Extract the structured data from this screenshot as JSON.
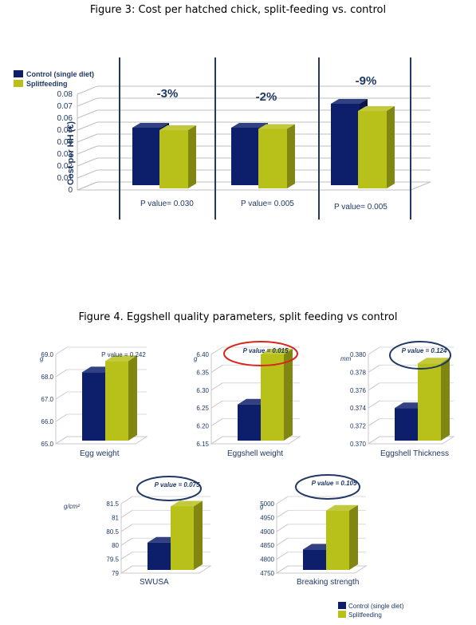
{
  "figure3": {
    "title": "Figure 3: Cost per hatched chick, split-feeding vs. control"
  },
  "figure4": {
    "title": "Figure 4. Eggshell quality parameters, split feeding vs control"
  },
  "colors": {
    "control": "#0d1f6b",
    "split": "#b8c01a",
    "accent": "#1f3864",
    "red_circle": "#d9261c"
  },
  "chart_data": [
    {
      "id": "cost",
      "type": "bar",
      "ylabel": "Cost per HH (€)",
      "ylim": [
        0,
        0.08
      ],
      "yticks": [
        "0",
        "0.01",
        "0.02",
        "0.03",
        "0.04",
        "0.05",
        "0.06",
        "0.07",
        "0.08"
      ],
      "legend": [
        "Control (single diet)",
        "Splitfeeding"
      ],
      "legend_position": "top-left",
      "categories": [
        "",
        "",
        ""
      ],
      "series": [
        {
          "name": "Control (single diet)",
          "values": [
            0.052,
            0.052,
            0.072
          ]
        },
        {
          "name": "Splitfeeding",
          "values": [
            0.05,
            0.051,
            0.066
          ]
        }
      ],
      "annotations": [
        "-3%",
        "-2%",
        "-9%"
      ],
      "p_labels": [
        "P value= 0.030",
        "P value= 0.005",
        "P value= 0.005"
      ]
    },
    {
      "id": "egg_weight",
      "type": "bar",
      "xlabel": "Egg weight",
      "unit": "g",
      "p_label": "P value = 0.242",
      "ylim": [
        65.0,
        69.0
      ],
      "yticks": [
        "65.0",
        "66.0",
        "67.0",
        "68.0",
        "69.0"
      ],
      "series": [
        {
          "name": "Control (single diet)",
          "values": [
            68.2
          ]
        },
        {
          "name": "Splitfeeding",
          "values": [
            68.7
          ]
        }
      ]
    },
    {
      "id": "eggshell_weight",
      "type": "bar",
      "xlabel": "Eggshell weight",
      "unit": "g",
      "p_label": "P value = 0.015",
      "ylim": [
        6.15,
        6.4
      ],
      "yticks": [
        "6.15",
        "6.20",
        "6.25",
        "6.30",
        "6.35",
        "6.40"
      ],
      "series": [
        {
          "name": "Control (single diet)",
          "values": [
            6.26
          ]
        },
        {
          "name": "Splitfeeding",
          "values": [
            6.4
          ]
        }
      ]
    },
    {
      "id": "eggshell_thickness",
      "type": "bar",
      "xlabel": "Eggshell  Thickness",
      "unit": "mm",
      "p_label": "P value = 0.124",
      "ylim": [
        0.37,
        0.38
      ],
      "yticks": [
        "0.370",
        "0.372",
        "0.374",
        "0.376",
        "0.378",
        "0.380"
      ],
      "series": [
        {
          "name": "Control (single diet)",
          "values": [
            0.374
          ]
        },
        {
          "name": "Splitfeeding",
          "values": [
            0.379
          ]
        }
      ]
    },
    {
      "id": "swusa",
      "type": "bar",
      "xlabel": "SWUSA",
      "unit": "g/cm²",
      "p_label": "P value = 0.075",
      "ylim": [
        79,
        81.5
      ],
      "yticks": [
        "79",
        "79.5",
        "80",
        "80.5",
        "81",
        "81.5"
      ],
      "series": [
        {
          "name": "Control (single diet)",
          "values": [
            80.1
          ]
        },
        {
          "name": "Splitfeeding",
          "values": [
            81.4
          ]
        }
      ]
    },
    {
      "id": "breaking_strength",
      "type": "bar",
      "xlabel": "Breaking strength",
      "unit": "g",
      "p_label": "P value = 0.105",
      "ylim": [
        4750,
        5000
      ],
      "yticks": [
        "4750",
        "4800",
        "4850",
        "4900",
        "4950",
        "5000"
      ],
      "series": [
        {
          "name": "Control (single diet)",
          "values": [
            4835
          ]
        },
        {
          "name": "Splitfeeding",
          "values": [
            4975
          ]
        }
      ]
    }
  ],
  "bottom_legend": [
    "Control (single diet)",
    "Splitfeeding"
  ]
}
